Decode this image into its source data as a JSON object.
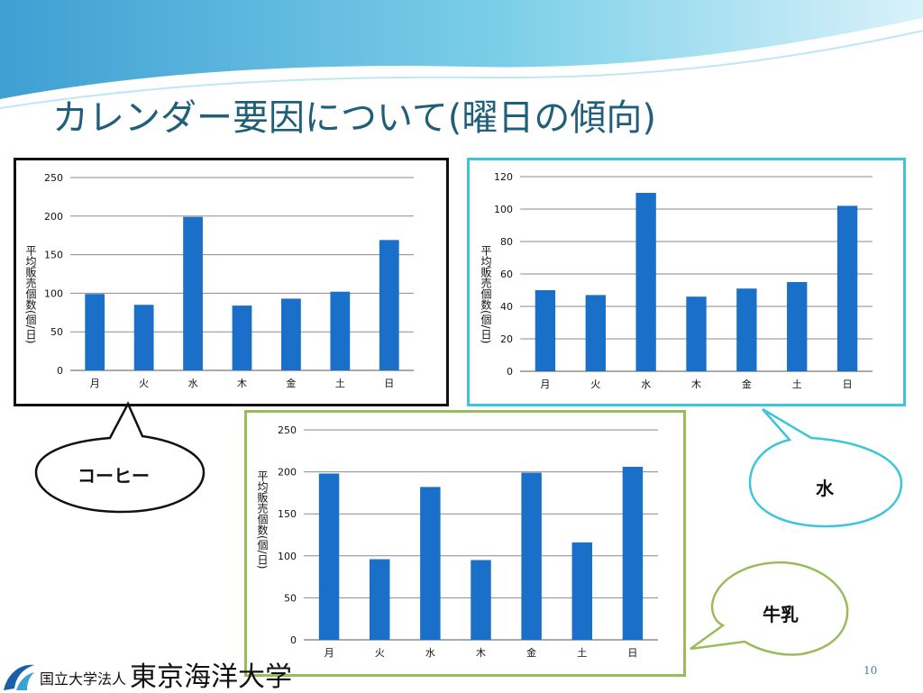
{
  "slide": {
    "title": "カレンダー要因について(曜日の傾向)",
    "page_number": "10",
    "footer_org": "国立大学法人",
    "footer_university": "東京海洋大学"
  },
  "callouts": {
    "coffee": "コーヒー",
    "water": "水",
    "milk": "牛乳"
  },
  "colors": {
    "bar": "#1a6fc9",
    "title": "#1f5f7a",
    "coffee_border": "#111111",
    "water_border": "#3cc6d8",
    "milk_border": "#9bbb59"
  },
  "chart_data": [
    {
      "type": "bar",
      "categories": [
        "月",
        "火",
        "水",
        "木",
        "金",
        "土",
        "日"
      ],
      "values": [
        99,
        85,
        199,
        84,
        93,
        102,
        169
      ],
      "ylabel": "平均販売個数(個/日)",
      "ylim": [
        0,
        250
      ],
      "yticks": [
        0,
        50,
        100,
        150,
        200,
        250
      ],
      "grid": true
    },
    {
      "type": "bar",
      "categories": [
        "月",
        "火",
        "水",
        "木",
        "金",
        "土",
        "日"
      ],
      "values": [
        50,
        47,
        110,
        46,
        51,
        55,
        102
      ],
      "ylabel": "平均販売個数(個/日)",
      "ylim": [
        0,
        120
      ],
      "yticks": [
        0,
        20,
        40,
        60,
        80,
        100,
        120
      ],
      "grid": true
    },
    {
      "type": "bar",
      "categories": [
        "月",
        "火",
        "水",
        "木",
        "金",
        "土",
        "日"
      ],
      "values": [
        198,
        96,
        182,
        95,
        199,
        116,
        206
      ],
      "ylabel": "平均販売個数(個/日)",
      "ylim": [
        0,
        250
      ],
      "yticks": [
        0,
        50,
        100,
        150,
        200,
        250
      ],
      "grid": true
    }
  ]
}
